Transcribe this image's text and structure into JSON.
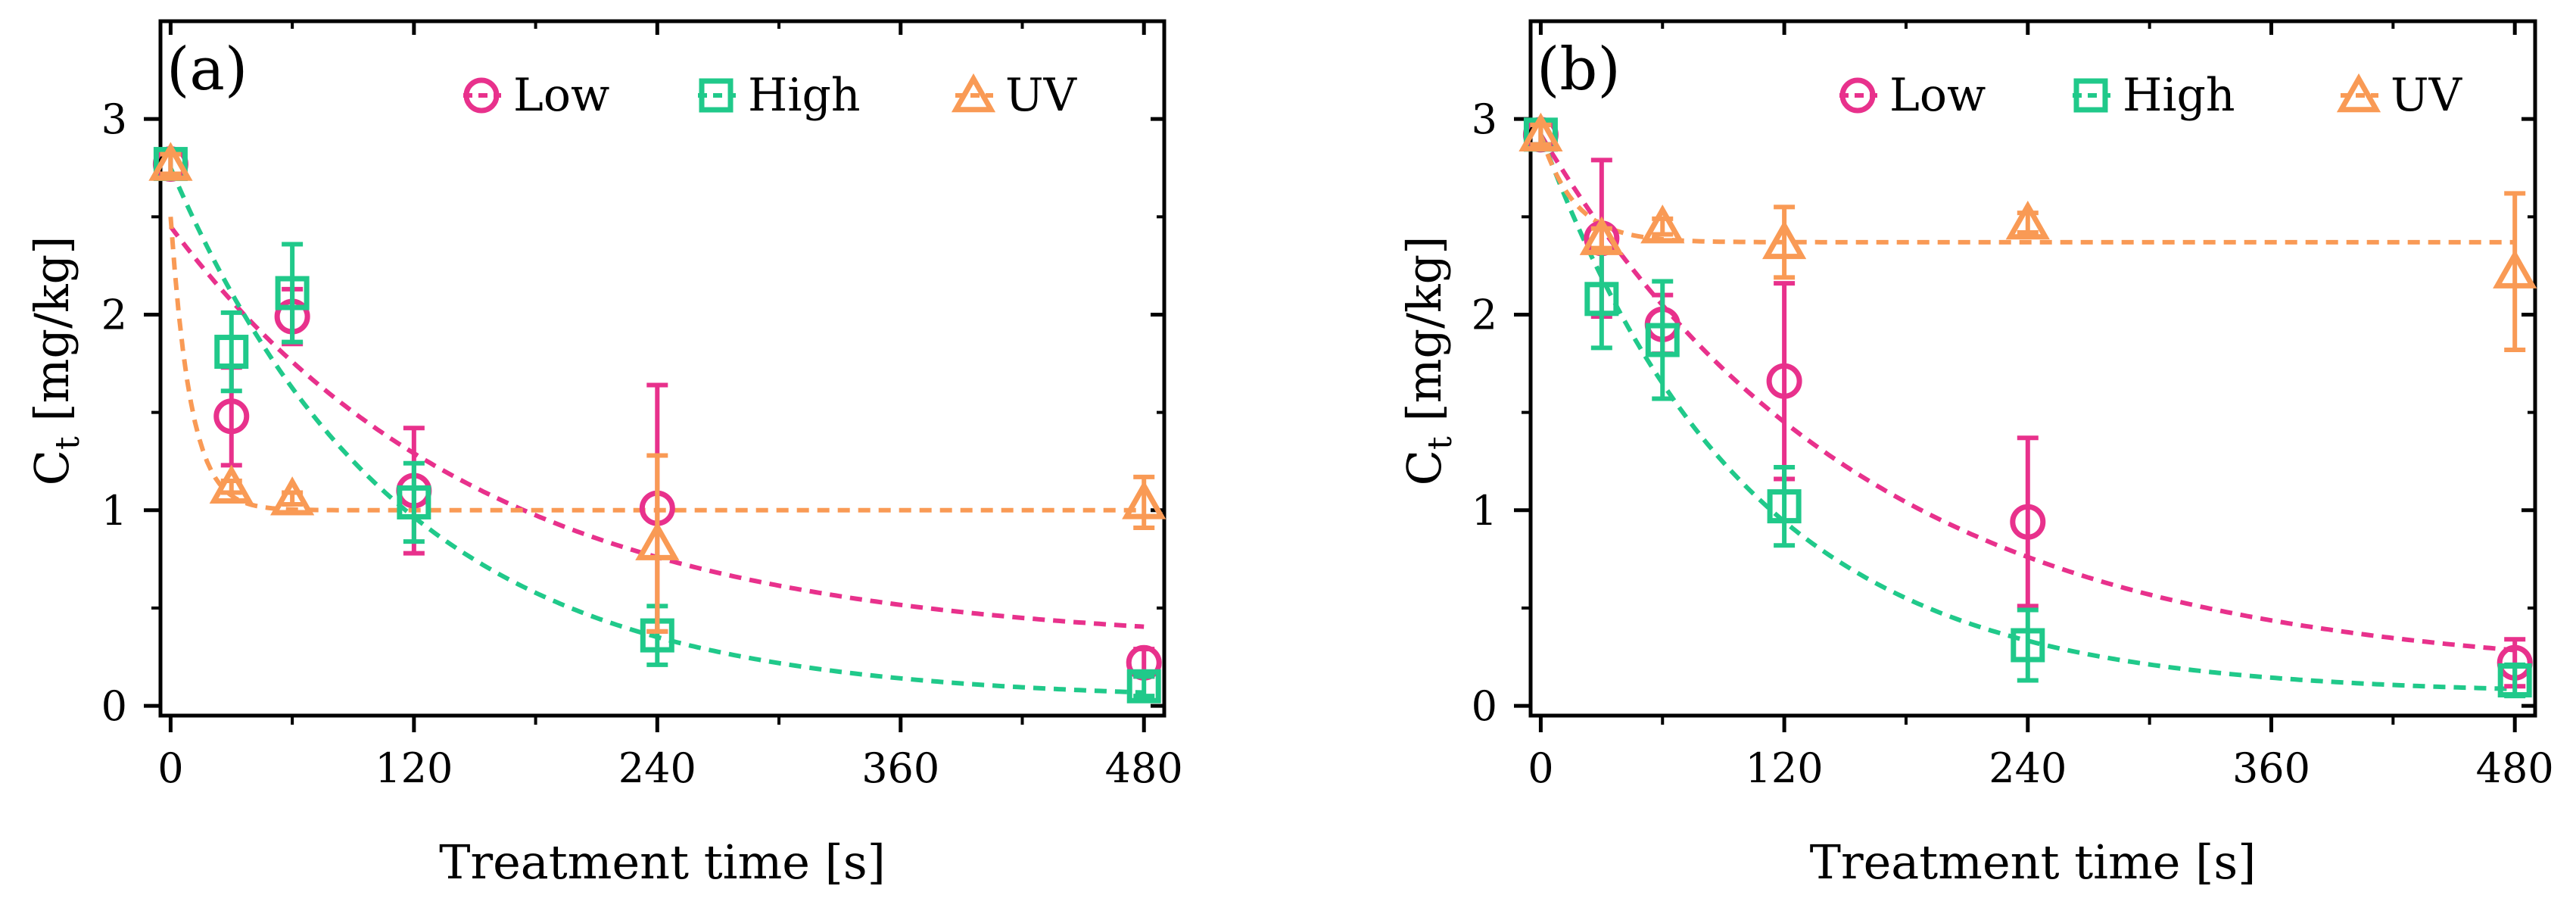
{
  "colors": {
    "low": "#e8318c",
    "high": "#20c98a",
    "uv": "#f99a55",
    "axis": "#000000"
  },
  "chart_data": [
    {
      "type": "scatter",
      "panel_label": "(a)",
      "xlabel": "Treatment time [s]",
      "ylabel_main": "C",
      "ylabel_sub": "t",
      "ylabel_units": " [mg/kg]",
      "xlim": [
        -5,
        490
      ],
      "ylim": [
        -0.05,
        3.5
      ],
      "xticks": [
        0,
        120,
        240,
        360,
        480
      ],
      "yticks": [
        0,
        1,
        2,
        3
      ],
      "xtick_labels": [
        "0",
        "120",
        "240",
        "360",
        "480"
      ],
      "ytick_labels": [
        "0",
        "1",
        "2",
        "3"
      ],
      "legend_position": "top-right",
      "grid": false,
      "series": [
        {
          "name": "Low",
          "marker": "circle",
          "color_key": "low",
          "x": [
            0,
            30,
            60,
            120,
            240,
            480
          ],
          "y": [
            2.77,
            1.48,
            1.99,
            1.1,
            1.01,
            0.22
          ],
          "err": [
            0.07,
            0.25,
            0.14,
            0.32,
            0.63,
            0.07
          ],
          "fit": {
            "model": "exp",
            "c0": 2.45,
            "cinf": 0.31,
            "k": 0.0065
          }
        },
        {
          "name": "High",
          "marker": "square",
          "color_key": "high",
          "x": [
            0,
            30,
            60,
            120,
            240,
            480
          ],
          "y": [
            2.77,
            1.81,
            2.11,
            1.04,
            0.36,
            0.1
          ],
          "err": [
            0.07,
            0.2,
            0.25,
            0.2,
            0.15,
            0.05
          ],
          "fit": {
            "model": "exp",
            "c0": 2.75,
            "cinf": 0.03,
            "k": 0.0089
          }
        },
        {
          "name": "UV",
          "marker": "triangle",
          "color_key": "uv",
          "x": [
            0,
            30,
            60,
            240,
            480
          ],
          "y": [
            2.77,
            1.12,
            1.06,
            0.83,
            1.04
          ],
          "err": [
            0.05,
            0.03,
            0.03,
            0.45,
            0.13
          ],
          "fit": {
            "model": "exp",
            "c0": 2.5,
            "cinf": 1.0,
            "k": 0.1
          }
        }
      ]
    },
    {
      "type": "scatter",
      "panel_label": "(b)",
      "xlabel": "Treatment time [s]",
      "ylabel_main": "C",
      "ylabel_sub": "t",
      "ylabel_units": " [mg/kg]",
      "xlim": [
        -5,
        490
      ],
      "ylim": [
        -0.05,
        3.5
      ],
      "xticks": [
        0,
        120,
        240,
        360,
        480
      ],
      "yticks": [
        0,
        1,
        2,
        3
      ],
      "xtick_labels": [
        "0",
        "120",
        "240",
        "360",
        "480"
      ],
      "ytick_labels": [
        "0",
        "1",
        "2",
        "3"
      ],
      "legend_position": "top-right",
      "grid": false,
      "series": [
        {
          "name": "Low",
          "marker": "circle",
          "color_key": "low",
          "x": [
            0,
            30,
            60,
            120,
            240,
            480
          ],
          "y": [
            2.92,
            2.39,
            1.95,
            1.66,
            0.94,
            0.22
          ],
          "err": [
            0.05,
            0.4,
            0.15,
            0.5,
            0.43,
            0.12
          ],
          "fit": {
            "model": "exp",
            "c0": 2.92,
            "cinf": 0.15,
            "k": 0.0063
          }
        },
        {
          "name": "High",
          "marker": "square",
          "color_key": "high",
          "x": [
            0,
            30,
            60,
            120,
            240,
            480
          ],
          "y": [
            2.92,
            2.08,
            1.87,
            1.02,
            0.31,
            0.13
          ],
          "err": [
            0.05,
            0.25,
            0.3,
            0.2,
            0.18,
            0.08
          ],
          "fit": {
            "model": "exp",
            "c0": 2.92,
            "cinf": 0.06,
            "k": 0.0098
          }
        },
        {
          "name": "UV",
          "marker": "triangle",
          "color_key": "uv",
          "x": [
            0,
            30,
            60,
            120,
            240,
            480
          ],
          "y": [
            2.92,
            2.39,
            2.45,
            2.37,
            2.47,
            2.22
          ],
          "err": [
            0.05,
            0.05,
            0.04,
            0.18,
            0.05,
            0.4
          ],
          "fit": {
            "model": "exp",
            "c0": 2.92,
            "cinf": 2.37,
            "k": 0.06
          }
        }
      ]
    }
  ]
}
